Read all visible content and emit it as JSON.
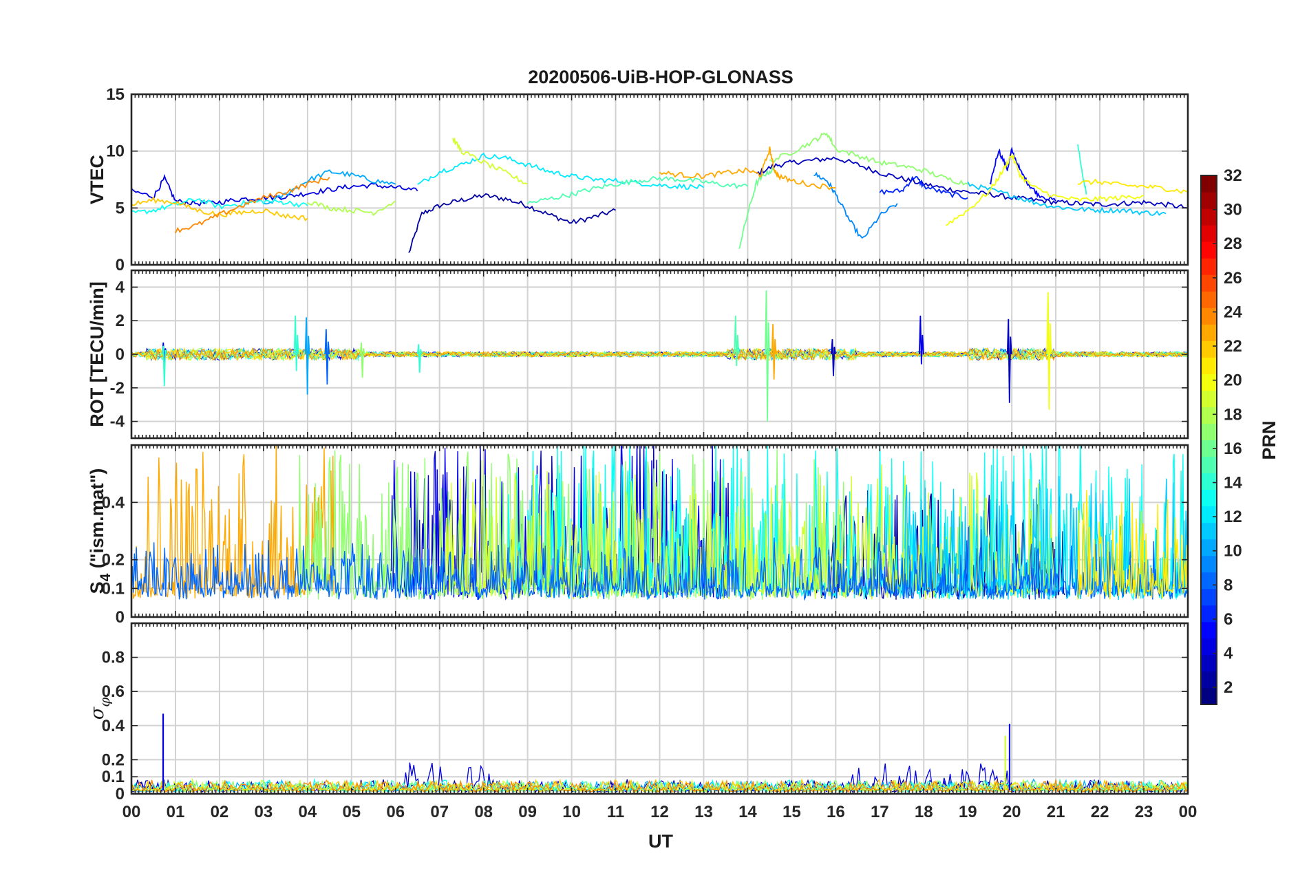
{
  "chart_data": [
    {
      "type": "line",
      "panel": "vtec",
      "title": "20200506-UiB-HOP-GLONASS",
      "xlabel": "",
      "ylabel": "VTEC",
      "xlim": [
        0,
        24
      ],
      "ylim": [
        0,
        15
      ],
      "yticks": [
        0,
        5,
        10,
        15
      ],
      "ytick_labels": [
        "0",
        "5",
        "10",
        "15"
      ],
      "grid": true,
      "series": [
        {
          "name": "PRN 2",
          "prn": 2,
          "x": [
            6.3,
            6.6,
            7.0,
            7.5,
            8.0,
            8.5,
            9.0,
            9.5,
            10.0,
            10.5,
            11.0
          ],
          "y": [
            1.0,
            4.5,
            5.2,
            5.7,
            6.1,
            5.8,
            5.2,
            4.4,
            3.7,
            4.2,
            4.8
          ]
        },
        {
          "name": "PRN 3",
          "prn": 3,
          "x": [
            14.2,
            14.6,
            15.0,
            15.5,
            16.0,
            16.5,
            17.0,
            17.5,
            18.0,
            18.5,
            19.0,
            19.5,
            20.0,
            20.5,
            21.0,
            21.5,
            22.0,
            22.5,
            23.0,
            23.5,
            24.0
          ],
          "y": [
            8.0,
            8.7,
            9.0,
            9.2,
            9.4,
            8.8,
            8.1,
            7.6,
            7.1,
            6.7,
            6.4,
            6.2,
            5.9,
            5.7,
            5.5,
            5.4,
            5.3,
            5.4,
            5.5,
            5.3,
            5.0
          ]
        },
        {
          "name": "PRN 4",
          "prn": 4,
          "x": [
            0.0,
            0.5,
            0.75,
            1.0,
            1.5,
            2.0,
            2.5,
            3.0,
            3.5,
            4.0,
            4.5,
            5.0,
            5.5,
            6.0,
            6.5
          ],
          "y": [
            6.5,
            6.0,
            7.6,
            5.6,
            5.4,
            5.5,
            5.8,
            5.9,
            6.0,
            6.3,
            6.6,
            6.9,
            7.0,
            6.8,
            6.5
          ]
        },
        {
          "name": "PRN 5",
          "prn": 5,
          "x": [
            19.5,
            19.7,
            19.9,
            20.0,
            20.2,
            20.4,
            20.6,
            21.0
          ],
          "y": [
            7.0,
            10.1,
            8.4,
            10.1,
            8.2,
            7.0,
            6.2,
            5.6
          ]
        },
        {
          "name": "PRN 6",
          "prn": 6,
          "x": [
            17.0,
            17.5,
            17.8,
            18.0,
            18.5,
            19.0
          ],
          "y": [
            6.4,
            6.5,
            7.8,
            6.9,
            6.3,
            5.9
          ]
        },
        {
          "name": "PRN 9",
          "prn": 9,
          "x": [
            15.5,
            15.8,
            16.0,
            16.3,
            16.6,
            17.0,
            17.4
          ],
          "y": [
            8.0,
            7.4,
            6.2,
            4.0,
            2.2,
            4.3,
            5.4
          ]
        },
        {
          "name": "PRN 10",
          "prn": 10,
          "x": [
            3.0,
            3.5,
            4.0,
            4.5,
            5.0,
            5.5,
            6.0
          ],
          "y": [
            5.2,
            6.2,
            7.4,
            8.2,
            7.9,
            7.4,
            7.1
          ]
        },
        {
          "name": "PRN 11",
          "prn": 11,
          "x": [
            19.0,
            19.5,
            20.0,
            20.5,
            21.0,
            21.5,
            22.0,
            22.5,
            23.0,
            23.5
          ],
          "y": [
            7.1,
            6.6,
            6.1,
            5.5,
            5.1,
            4.9,
            4.8,
            4.8,
            4.6,
            4.5
          ]
        },
        {
          "name": "PRN 12",
          "prn": 12,
          "x": [
            6.5,
            7.0,
            7.5,
            8.0,
            8.5,
            9.0,
            9.5,
            10.0,
            10.5,
            11.0,
            11.5,
            12.0,
            12.5,
            13.0
          ],
          "y": [
            7.0,
            8.2,
            8.8,
            9.6,
            9.4,
            8.8,
            8.2,
            7.8,
            7.5,
            7.4,
            7.2,
            7.0,
            6.9,
            6.8
          ]
        },
        {
          "name": "PRN 13",
          "prn": 13,
          "x": [
            0.0,
            0.5,
            1.0,
            1.5,
            2.0,
            2.5,
            3.0,
            3.5,
            4.0
          ],
          "y": [
            4.5,
            4.8,
            5.3,
            5.8,
            5.1,
            5.4,
            5.6,
            5.5,
            5.2
          ]
        },
        {
          "name": "PRN 14",
          "prn": 14,
          "x": [
            21.5,
            21.6,
            21.7
          ],
          "y": [
            10.6,
            8.0,
            6.2
          ]
        },
        {
          "name": "PRN 15",
          "prn": 15,
          "x": [
            9.0,
            9.5,
            10.0,
            10.5,
            11.0,
            11.5,
            12.0,
            12.5,
            13.0,
            13.5,
            14.0
          ],
          "y": [
            5.4,
            5.8,
            6.2,
            6.7,
            7.1,
            7.4,
            7.6,
            7.5,
            7.3,
            7.0,
            6.9
          ]
        },
        {
          "name": "PRN 16",
          "prn": 16,
          "x": [
            13.8,
            14.0,
            14.2,
            14.4,
            14.6
          ],
          "y": [
            1.4,
            4.5,
            7.2,
            8.0,
            8.4
          ]
        },
        {
          "name": "PRN 17",
          "prn": 17,
          "x": [
            14.5,
            15.0,
            15.5,
            15.8,
            16.0,
            16.5,
            17.0,
            17.5,
            18.0,
            18.5,
            19.0
          ],
          "y": [
            9.1,
            9.9,
            10.9,
            11.6,
            10.2,
            9.6,
            9.0,
            8.7,
            8.3,
            7.6,
            7.1
          ]
        },
        {
          "name": "PRN 18",
          "prn": 18,
          "x": [
            4.0,
            4.5,
            5.0,
            5.5,
            6.0
          ],
          "y": [
            5.6,
            5.0,
            4.8,
            4.6,
            5.6
          ]
        },
        {
          "name": "PRN 19",
          "prn": 19,
          "x": [
            7.3,
            7.5,
            8.0,
            8.5,
            9.0
          ],
          "y": [
            11.1,
            10.0,
            9.0,
            8.1,
            7.1
          ]
        },
        {
          "name": "PRN 20",
          "prn": 20,
          "x": [
            18.5,
            19.0,
            19.5,
            19.8,
            20.0,
            20.2,
            20.5,
            21.0,
            21.5,
            22.0,
            22.5,
            23.0
          ],
          "y": [
            3.5,
            4.8,
            6.5,
            8.3,
            9.7,
            7.8,
            6.8,
            6.0,
            5.7,
            5.8,
            5.9,
            6.1
          ]
        },
        {
          "name": "PRN 21",
          "prn": 21,
          "x": [
            21.5,
            22.0,
            22.5,
            23.0,
            23.5,
            24.0
          ],
          "y": [
            7.2,
            7.3,
            7.0,
            6.9,
            6.7,
            6.4
          ]
        },
        {
          "name": "PRN 22",
          "prn": 22,
          "x": [
            0.0,
            0.5,
            1.0,
            1.5,
            2.0,
            2.5,
            3.0,
            3.5,
            4.0
          ],
          "y": [
            5.3,
            5.7,
            5.5,
            4.8,
            4.4,
            4.6,
            4.8,
            4.3,
            4.1
          ]
        },
        {
          "name": "PRN 23",
          "prn": 23,
          "x": [
            12.0,
            12.5,
            13.0,
            13.5,
            14.0,
            14.3,
            14.5,
            14.6,
            14.7,
            15.0,
            15.5,
            16.0
          ],
          "y": [
            8.1,
            7.9,
            7.8,
            8.1,
            8.3,
            7.9,
            10.2,
            8.4,
            7.8,
            7.4,
            7.0,
            6.8
          ]
        },
        {
          "name": "PRN 24",
          "prn": 24,
          "x": [
            1.0,
            1.5,
            2.0,
            2.5,
            3.0,
            3.5,
            4.0,
            4.5
          ],
          "y": [
            3.0,
            3.5,
            4.4,
            5.2,
            5.9,
            6.4,
            7.1,
            7.7
          ]
        }
      ]
    },
    {
      "type": "line",
      "panel": "rot",
      "xlabel": "",
      "ylabel": "ROT [TECU/min]",
      "xlim": [
        0,
        24
      ],
      "ylim": [
        -5,
        5
      ],
      "yticks": [
        -4,
        -2,
        0,
        2,
        4
      ],
      "ytick_labels": [
        "-4",
        "-2",
        "0",
        "2",
        "4"
      ],
      "grid": true,
      "spikes": [
        {
          "prn": 4,
          "x": 0.7,
          "top": 0.7,
          "bottom": -0.5
        },
        {
          "prn": 14,
          "x": 0.7,
          "top": 0.5,
          "bottom": -1.9
        },
        {
          "prn": 10,
          "x": 3.95,
          "top": 2.2,
          "bottom": -2.4
        },
        {
          "prn": 14,
          "x": 3.7,
          "top": 2.3,
          "bottom": -1.0
        },
        {
          "prn": 8,
          "x": 4.4,
          "top": 1.5,
          "bottom": -1.8
        },
        {
          "prn": 17,
          "x": 5.2,
          "top": 0.7,
          "bottom": -1.4
        },
        {
          "prn": 14,
          "x": 6.5,
          "top": 0.6,
          "bottom": -1.1
        },
        {
          "prn": 15,
          "x": 13.7,
          "top": 2.3,
          "bottom": -0.7
        },
        {
          "prn": 16,
          "x": 14.4,
          "top": 3.8,
          "bottom": -4.0
        },
        {
          "prn": 23,
          "x": 14.55,
          "top": 1.8,
          "bottom": -1.5
        },
        {
          "prn": 3,
          "x": 15.9,
          "top": 0.9,
          "bottom": -1.3
        },
        {
          "prn": 4,
          "x": 17.9,
          "top": 2.3,
          "bottom": -0.6
        },
        {
          "prn": 3,
          "x": 19.9,
          "top": 2.1,
          "bottom": -2.9
        },
        {
          "prn": 20,
          "x": 20.8,
          "top": 3.7,
          "bottom": -3.3
        }
      ]
    },
    {
      "type": "line",
      "panel": "s4",
      "xlabel": "",
      "ylabel": "S4 (\"ism.mat\")",
      "xlim": [
        0,
        24
      ],
      "ylim": [
        0,
        0.6
      ],
      "yticks": [
        0,
        0.1,
        0.2,
        0.4
      ],
      "ytick_labels": [
        "0",
        "0.1",
        "0.2",
        "0.4"
      ],
      "grid": true
    },
    {
      "type": "line",
      "panel": "sigma-phi",
      "xlabel": "UT",
      "ylabel": "σφ",
      "xlim": [
        0,
        24
      ],
      "ylim": [
        0,
        1
      ],
      "yticks": [
        0,
        0.1,
        0.2,
        0.4,
        0.6,
        0.8
      ],
      "ytick_labels": [
        "0",
        "0.1",
        "0.2",
        "0.4",
        "0.6",
        "0.8"
      ],
      "xtick_labels": [
        "00",
        "01",
        "02",
        "03",
        "04",
        "05",
        "06",
        "07",
        "08",
        "09",
        "10",
        "11",
        "12",
        "13",
        "14",
        "15",
        "16",
        "17",
        "18",
        "19",
        "20",
        "21",
        "22",
        "23",
        "00"
      ],
      "grid": true,
      "spikes": [
        {
          "prn": 4,
          "x": 0.72,
          "top": 0.47
        },
        {
          "prn": 19,
          "x": 19.85,
          "top": 0.34
        },
        {
          "prn": 4,
          "x": 19.95,
          "top": 0.41
        }
      ]
    }
  ],
  "colorbar": {
    "label": "PRN",
    "ticks": [
      2,
      4,
      6,
      8,
      10,
      12,
      14,
      16,
      18,
      20,
      22,
      24,
      26,
      28,
      30,
      32
    ],
    "tick_labels": [
      "2",
      "4",
      "6",
      "8",
      "10",
      "12",
      "14",
      "16",
      "18",
      "20",
      "22",
      "24",
      "26",
      "28",
      "30",
      "32"
    ],
    "range": [
      1,
      32
    ],
    "colormap": "jet"
  }
}
